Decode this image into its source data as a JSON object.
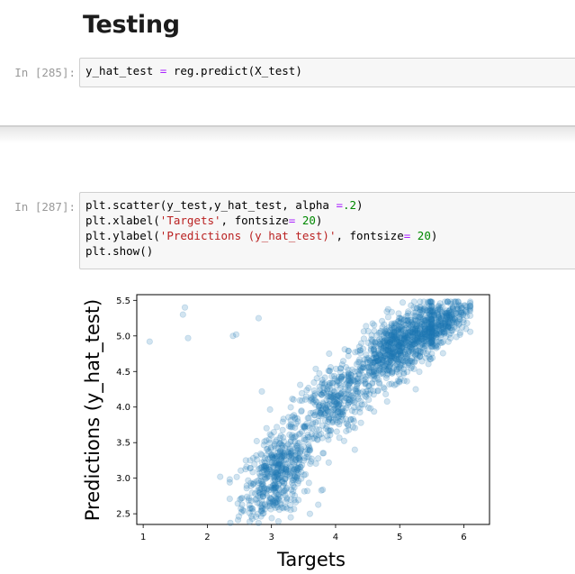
{
  "heading": "Testing",
  "cells": [
    {
      "prompt": "In [285]:",
      "code_lines": [
        [
          [
            "t",
            "y_hat_test "
          ],
          [
            "op",
            "="
          ],
          [
            "t",
            " reg.predict(X_test)"
          ]
        ]
      ]
    },
    {
      "prompt": "In [287]:",
      "code_lines": [
        [
          [
            "t",
            "plt.scatter(y_test,y_hat_test, alpha "
          ],
          [
            "op",
            "="
          ],
          [
            "num",
            ".2"
          ],
          [
            "t",
            ")"
          ]
        ],
        [
          [
            "t",
            "plt.xlabel("
          ],
          [
            "str",
            "'Targets'"
          ],
          [
            "t",
            ", fontsize"
          ],
          [
            "op",
            "="
          ],
          [
            "t",
            " "
          ],
          [
            "num",
            "20"
          ],
          [
            "t",
            ")"
          ]
        ],
        [
          [
            "t",
            "plt.ylabel("
          ],
          [
            "str",
            "'Predictions (y_hat_test)'"
          ],
          [
            "t",
            ", fontsize"
          ],
          [
            "op",
            "="
          ],
          [
            "t",
            " "
          ],
          [
            "num",
            "20"
          ],
          [
            "t",
            ")"
          ]
        ],
        [
          [
            "t",
            "plt.show()"
          ]
        ]
      ]
    }
  ],
  "chart_data": {
    "type": "scatter",
    "xlabel": "Targets",
    "ylabel": "Predictions (y_hat_test)",
    "xlim": [
      0.9,
      6.4
    ],
    "ylim": [
      2.35,
      5.58
    ],
    "xticks": [
      1,
      2,
      3,
      4,
      5,
      6
    ],
    "yticks": [
      2.5,
      3.0,
      3.5,
      4.0,
      4.5,
      5.0,
      5.5
    ],
    "ytick_labels": [
      "2.5",
      "3.0",
      "3.5",
      "4.0",
      "4.5",
      "5.0",
      "5.5"
    ],
    "color": "#1f77b4",
    "alpha": 0.2,
    "outliers": [
      [
        1.1,
        4.92
      ],
      [
        1.62,
        5.3
      ],
      [
        1.65,
        5.4
      ],
      [
        1.7,
        4.97
      ],
      [
        2.4,
        5.0
      ],
      [
        2.45,
        5.02
      ],
      [
        2.8,
        5.25
      ],
      [
        2.2,
        3.02
      ],
      [
        2.85,
        4.22
      ],
      [
        2.6,
        3.25
      ],
      [
        6.05,
        5.18
      ],
      [
        3.3,
        2.45
      ],
      [
        2.55,
        2.55
      ],
      [
        3.6,
        2.5
      ],
      [
        5.25,
        4.25
      ],
      [
        4.3,
        3.4
      ],
      [
        3.9,
        4.75
      ],
      [
        5.95,
        5.35
      ],
      [
        4.6,
        4.5
      ]
    ],
    "clusters": [
      {
        "x_range": [
          2.35,
          3.8
        ],
        "center_x": 3.1,
        "center_y": 3.05,
        "sd_x": 0.28,
        "sd_y": 0.3,
        "n": 520
      },
      {
        "x_range": [
          3.3,
          4.6
        ],
        "center_x": 3.95,
        "center_y": 4.05,
        "sd_x": 0.3,
        "sd_y": 0.28,
        "n": 360
      },
      {
        "x_range": [
          4.2,
          5.5
        ],
        "center_x": 4.95,
        "center_y": 4.85,
        "sd_x": 0.32,
        "sd_y": 0.22,
        "n": 700
      },
      {
        "x_range": [
          5.0,
          6.1
        ],
        "center_x": 5.6,
        "center_y": 5.15,
        "sd_x": 0.25,
        "sd_y": 0.17,
        "n": 380
      }
    ]
  }
}
